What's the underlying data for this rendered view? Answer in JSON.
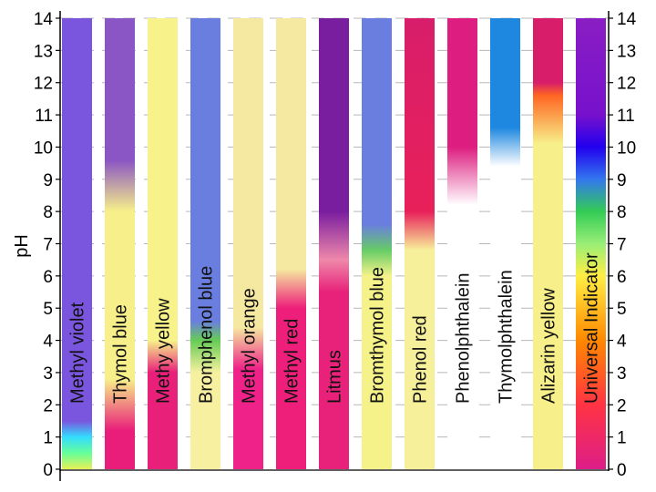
{
  "chart_data": {
    "type": "bar",
    "title": "",
    "xlabel": "",
    "ylabel": "pH",
    "ylim": [
      0,
      14
    ],
    "yticks": [
      "0",
      "1",
      "2",
      "3",
      "4",
      "5",
      "6",
      "7",
      "8",
      "9",
      "10",
      "11",
      "12",
      "13",
      "14"
    ],
    "grid": true,
    "legend": "none",
    "series": [
      {
        "name": "Methyl violet",
        "stops": [
          {
            "ph": 0,
            "color": "#e8f055"
          },
          {
            "ph": 0.5,
            "color": "#66ff99"
          },
          {
            "ph": 1.0,
            "color": "#33ddff"
          },
          {
            "ph": 1.5,
            "color": "#7a55dd"
          },
          {
            "ph": 14,
            "color": "#7a55dd"
          }
        ]
      },
      {
        "name": "Thymol blue",
        "stops": [
          {
            "ph": 0,
            "color": "#e91e7a"
          },
          {
            "ph": 1.2,
            "color": "#e91e7a"
          },
          {
            "ph": 2.8,
            "color": "#f7f08a"
          },
          {
            "ph": 8.0,
            "color": "#f7f08a"
          },
          {
            "ph": 9.6,
            "color": "#8a55c4"
          },
          {
            "ph": 14,
            "color": "#8a55c4"
          }
        ]
      },
      {
        "name": "Methy yellow",
        "stops": [
          {
            "ph": 0,
            "color": "#e8207a"
          },
          {
            "ph": 3.0,
            "color": "#e8207a"
          },
          {
            "ph": 4.0,
            "color": "#f7f28a"
          },
          {
            "ph": 14,
            "color": "#f7f28a"
          }
        ]
      },
      {
        "name": "Bromphenol blue",
        "stops": [
          {
            "ph": 0,
            "color": "#f7f0a0"
          },
          {
            "ph": 3.0,
            "color": "#f7f0a0"
          },
          {
            "ph": 4.0,
            "color": "#66cc55"
          },
          {
            "ph": 4.6,
            "color": "#6a7ee0"
          },
          {
            "ph": 14,
            "color": "#6a7ee0"
          }
        ]
      },
      {
        "name": "Methyl orange",
        "stops": [
          {
            "ph": 0,
            "color": "#ee2288"
          },
          {
            "ph": 3.1,
            "color": "#ee2288"
          },
          {
            "ph": 4.4,
            "color": "#f5e8a0"
          },
          {
            "ph": 14,
            "color": "#f5e8a0"
          }
        ]
      },
      {
        "name": "Methyl red",
        "stops": [
          {
            "ph": 0,
            "color": "#ee1f7a"
          },
          {
            "ph": 5.0,
            "color": "#ee1f7a"
          },
          {
            "ph": 6.2,
            "color": "#f5e8a0"
          },
          {
            "ph": 14,
            "color": "#f5e8a0"
          }
        ]
      },
      {
        "name": "Litmus",
        "stops": [
          {
            "ph": 0,
            "color": "#e8227a"
          },
          {
            "ph": 5.5,
            "color": "#e8227a"
          },
          {
            "ph": 6.5,
            "color": "#ee88aa"
          },
          {
            "ph": 8.0,
            "color": "#7a1ea0"
          },
          {
            "ph": 14,
            "color": "#7a1ea0"
          }
        ]
      },
      {
        "name": "Bromthymol blue",
        "stops": [
          {
            "ph": 0,
            "color": "#f5f28a"
          },
          {
            "ph": 6.0,
            "color": "#f5f28a"
          },
          {
            "ph": 6.8,
            "color": "#66cc66"
          },
          {
            "ph": 7.6,
            "color": "#6a7ee0"
          },
          {
            "ph": 14,
            "color": "#6a7ee0"
          }
        ]
      },
      {
        "name": "Phenol red",
        "stops": [
          {
            "ph": 0,
            "color": "#f7f09a"
          },
          {
            "ph": 6.8,
            "color": "#f7f09a"
          },
          {
            "ph": 8.0,
            "color": "#e8205a"
          },
          {
            "ph": 14,
            "color": "#d81e6a"
          }
        ]
      },
      {
        "name": "Phenolphthalein",
        "stops": [
          {
            "ph": 0,
            "color": "#ffffff"
          },
          {
            "ph": 8.2,
            "color": "#ffffff"
          },
          {
            "ph": 10.0,
            "color": "#dd1e80"
          },
          {
            "ph": 14,
            "color": "#dd1e80"
          }
        ]
      },
      {
        "name": "Thymolphthalein",
        "stops": [
          {
            "ph": 0,
            "color": "#ffffff"
          },
          {
            "ph": 9.4,
            "color": "#ffffff"
          },
          {
            "ph": 10.6,
            "color": "#1e88e0"
          },
          {
            "ph": 14,
            "color": "#1e88e0"
          }
        ]
      },
      {
        "name": "Alizarin yellow",
        "stops": [
          {
            "ph": 0,
            "color": "#f7f08a"
          },
          {
            "ph": 10.1,
            "color": "#f7f08a"
          },
          {
            "ph": 11.6,
            "color": "#ff6622"
          },
          {
            "ph": 12.0,
            "color": "#d81e6a"
          },
          {
            "ph": 14,
            "color": "#d81e6a"
          }
        ]
      },
      {
        "name": "Universal Indicator",
        "stops": [
          {
            "ph": 0,
            "color": "#dd1e88"
          },
          {
            "ph": 2.0,
            "color": "#ff3344"
          },
          {
            "ph": 4.0,
            "color": "#ff8800"
          },
          {
            "ph": 6.0,
            "color": "#ffee44"
          },
          {
            "ph": 7.0,
            "color": "#99ee77"
          },
          {
            "ph": 8.0,
            "color": "#33cc55"
          },
          {
            "ph": 9.0,
            "color": "#3377ee"
          },
          {
            "ph": 10.0,
            "color": "#2200ee"
          },
          {
            "ph": 11.0,
            "color": "#7711cc"
          },
          {
            "ph": 14,
            "color": "#8a1ec4"
          }
        ]
      }
    ]
  }
}
